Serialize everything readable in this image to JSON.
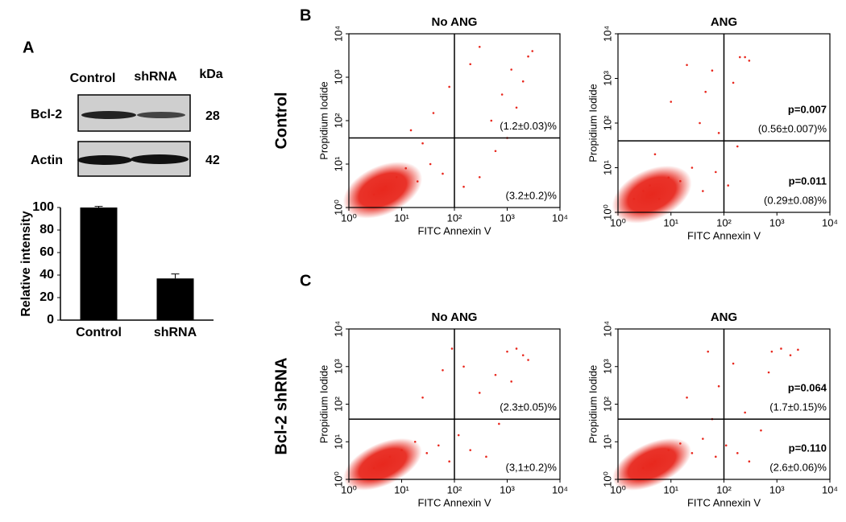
{
  "panel_labels": [
    "A",
    "B",
    "C"
  ],
  "row_labels": [
    "Control",
    "Bcl-2 shRNA"
  ],
  "blot": {
    "lanes": [
      "Control",
      "shRNA"
    ],
    "unit": "kDa",
    "rows": [
      {
        "name": "Bcl-2",
        "size": "28"
      },
      {
        "name": "Actin",
        "size": "42"
      }
    ]
  },
  "chart_data": [
    {
      "type": "bar",
      "ylabel": "Relative intensity",
      "categories": [
        "Control",
        "shRNA"
      ],
      "values": [
        100,
        37
      ],
      "errors": [
        1,
        4
      ],
      "color": "#000000",
      "ylim": [
        0,
        100
      ],
      "yticks": [
        0,
        20,
        40,
        60,
        80,
        100
      ]
    },
    {
      "type": "scatter",
      "title": "No ANG",
      "xlabel": "FITC Annexin V",
      "ylabel": "Propidium Iodide",
      "log": true,
      "color": "#e8281e",
      "xlim": [
        1,
        10000
      ],
      "ylim": [
        1,
        10000
      ],
      "quadrant": {
        "x": 100,
        "y": 40
      },
      "xticks": [
        {
          "value": 1,
          "label": "10⁰"
        },
        {
          "value": 10,
          "label": "10¹"
        },
        {
          "value": 100,
          "label": "10²"
        },
        {
          "value": 1000,
          "label": "10³"
        },
        {
          "value": 10000,
          "label": "10⁴"
        }
      ],
      "yticks": [
        {
          "value": 1,
          "label": "10⁰"
        },
        {
          "value": 10,
          "label": "10¹"
        },
        {
          "value": 100,
          "label": "10²"
        },
        {
          "value": 1000,
          "label": "10³"
        },
        {
          "value": 10000,
          "label": "10⁴"
        }
      ],
      "x": [
        3,
        5,
        8,
        12,
        20,
        35,
        60,
        150,
        300,
        600,
        1000,
        1500,
        2000,
        2500,
        40,
        80,
        200,
        500,
        15,
        25,
        300,
        800,
        1200,
        3000
      ],
      "y": [
        2,
        3,
        5,
        8,
        4,
        10,
        6,
        3,
        5,
        20,
        40,
        200,
        800,
        3000,
        150,
        600,
        2000,
        100,
        60,
        30,
        5000,
        400,
        1500,
        4000
      ],
      "annotations": {
        "upper_right": "(1.2±0.03)%",
        "lower_right": "(3.2±0.2)%"
      }
    },
    {
      "type": "scatter",
      "title": "ANG",
      "xlabel": "FITC Annexin V",
      "ylabel": "Propidium Iodide",
      "log": true,
      "color": "#e8281e",
      "xlim": [
        1,
        10000
      ],
      "ylim": [
        1,
        10000
      ],
      "quadrant": {
        "x": 100,
        "y": 40
      },
      "xticks": [
        {
          "value": 1,
          "label": "10⁰"
        },
        {
          "value": 10,
          "label": "10¹"
        },
        {
          "value": 100,
          "label": "10²"
        },
        {
          "value": 1000,
          "label": "10³"
        },
        {
          "value": 10000,
          "label": "10⁴"
        }
      ],
      "yticks": [
        {
          "value": 1,
          "label": "10⁰"
        },
        {
          "value": 10,
          "label": "10¹"
        },
        {
          "value": 100,
          "label": "10²"
        },
        {
          "value": 1000,
          "label": "10³"
        },
        {
          "value": 10000,
          "label": "10⁴"
        }
      ],
      "x": [
        2,
        3,
        4,
        6,
        9,
        15,
        25,
        40,
        70,
        120,
        200,
        300,
        20,
        60,
        150,
        250,
        10,
        35,
        80,
        180,
        5,
        45
      ],
      "y": [
        2,
        3,
        4,
        2,
        6,
        5,
        10,
        3,
        8,
        4,
        3000,
        2500,
        2000,
        1500,
        800,
        3000,
        300,
        100,
        60,
        30,
        20,
        500
      ],
      "annotations": {
        "upper_right_p": "p=0.007",
        "upper_right": "(0.56±0.007)%",
        "lower_right_p": "p=0.011",
        "lower_right": "(0.29±0.08)%"
      }
    },
    {
      "type": "scatter",
      "title": "No ANG",
      "xlabel": "FITC Annexin V",
      "ylabel": "Propidium Iodide",
      "log": true,
      "color": "#e8281e",
      "xlim": [
        1,
        10000
      ],
      "ylim": [
        1,
        10000
      ],
      "quadrant": {
        "x": 100,
        "y": 40
      },
      "xticks": [
        {
          "value": 1,
          "label": "10⁰"
        },
        {
          "value": 10,
          "label": "10¹"
        },
        {
          "value": 100,
          "label": "10²"
        },
        {
          "value": 1000,
          "label": "10³"
        },
        {
          "value": 10000,
          "label": "10⁴"
        }
      ],
      "yticks": [
        {
          "value": 1,
          "label": "10⁰"
        },
        {
          "value": 10,
          "label": "10¹"
        },
        {
          "value": 100,
          "label": "10²"
        },
        {
          "value": 1000,
          "label": "10³"
        },
        {
          "value": 10000,
          "label": "10⁴"
        }
      ],
      "x": [
        3,
        6,
        10,
        18,
        30,
        50,
        80,
        120,
        200,
        400,
        700,
        1000,
        1500,
        2000,
        2500,
        60,
        90,
        300,
        600,
        25,
        150,
        1200
      ],
      "y": [
        2,
        4,
        6,
        10,
        5,
        8,
        3,
        15,
        6,
        4,
        30,
        2500,
        3000,
        2000,
        1500,
        800,
        3000,
        200,
        600,
        150,
        1000,
        400
      ],
      "annotations": {
        "upper_right": "(2.3±0.05)%",
        "lower_right": "(3,1±0.2)%"
      }
    },
    {
      "type": "scatter",
      "title": "ANG",
      "xlabel": "FITC Annexin V",
      "ylabel": "Propidium Iodide",
      "log": true,
      "color": "#e8281e",
      "xlim": [
        1,
        10000
      ],
      "ylim": [
        1,
        10000
      ],
      "quadrant": {
        "x": 100,
        "y": 40
      },
      "xticks": [
        {
          "value": 1,
          "label": "10⁰"
        },
        {
          "value": 10,
          "label": "10¹"
        },
        {
          "value": 100,
          "label": "10²"
        },
        {
          "value": 1000,
          "label": "10³"
        },
        {
          "value": 10000,
          "label": "10⁴"
        }
      ],
      "yticks": [
        {
          "value": 1,
          "label": "10⁰"
        },
        {
          "value": 10,
          "label": "10¹"
        },
        {
          "value": 100,
          "label": "10²"
        },
        {
          "value": 1000,
          "label": "10³"
        },
        {
          "value": 10000,
          "label": "10⁴"
        }
      ],
      "x": [
        3,
        5,
        9,
        15,
        25,
        40,
        70,
        110,
        180,
        300,
        500,
        800,
        1200,
        1800,
        2500,
        50,
        80,
        20,
        250,
        700,
        150,
        60
      ],
      "y": [
        2,
        3,
        6,
        9,
        5,
        12,
        4,
        8,
        5,
        3,
        20,
        2500,
        3000,
        2000,
        2800,
        2500,
        300,
        150,
        60,
        700,
        1200,
        40
      ],
      "annotations": {
        "upper_right_p": "p=0.064",
        "upper_right": "(1.7±0.15)%",
        "lower_right_p": "p=0.110",
        "lower_right": "(2.6±0.06)%"
      }
    }
  ]
}
